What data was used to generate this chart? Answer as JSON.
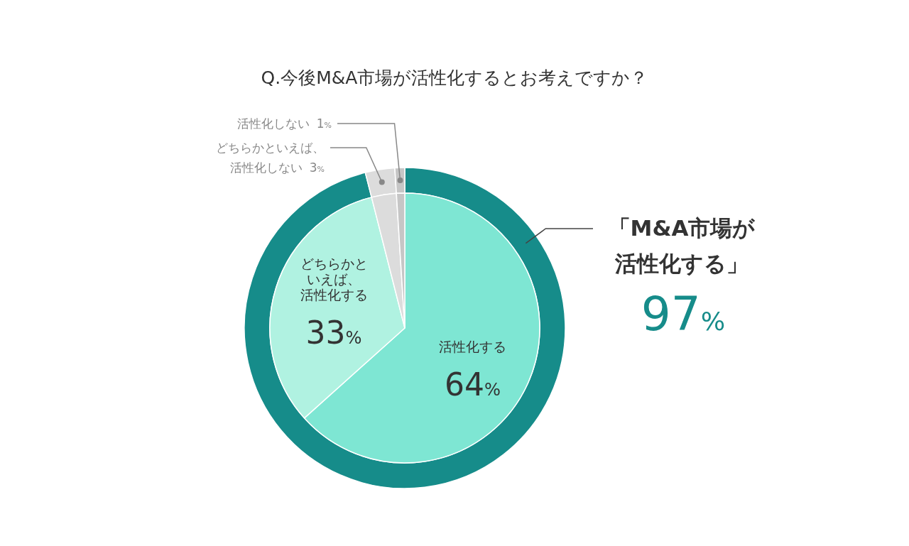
{
  "chart_data": [
    {
      "type": "pie",
      "title": "Q.今後M&A市場が活性化するとお考えですか？",
      "categories": [
        "活性化する",
        "どちらかといえば、活性化する",
        "どちらかといえば、活性化しない",
        "活性化しない"
      ],
      "values": [
        64,
        33,
        3,
        1
      ],
      "colors": [
        "#7ee6d3",
        "#b0f2e1",
        "#dcdcdc",
        "#c6c6c6"
      ],
      "value_labels": [
        "64%",
        "33%",
        "3%",
        "1%"
      ]
    },
    {
      "type": "donut",
      "categories": [
        "「M&A市場が活性化する」",
        null,
        null
      ],
      "values": [
        97,
        3,
        1
      ],
      "colors": [
        "#168c8a",
        "#dcdcdc",
        "#c6c6c6"
      ],
      "value_labels": [
        "97%",
        null,
        null
      ]
    }
  ]
}
